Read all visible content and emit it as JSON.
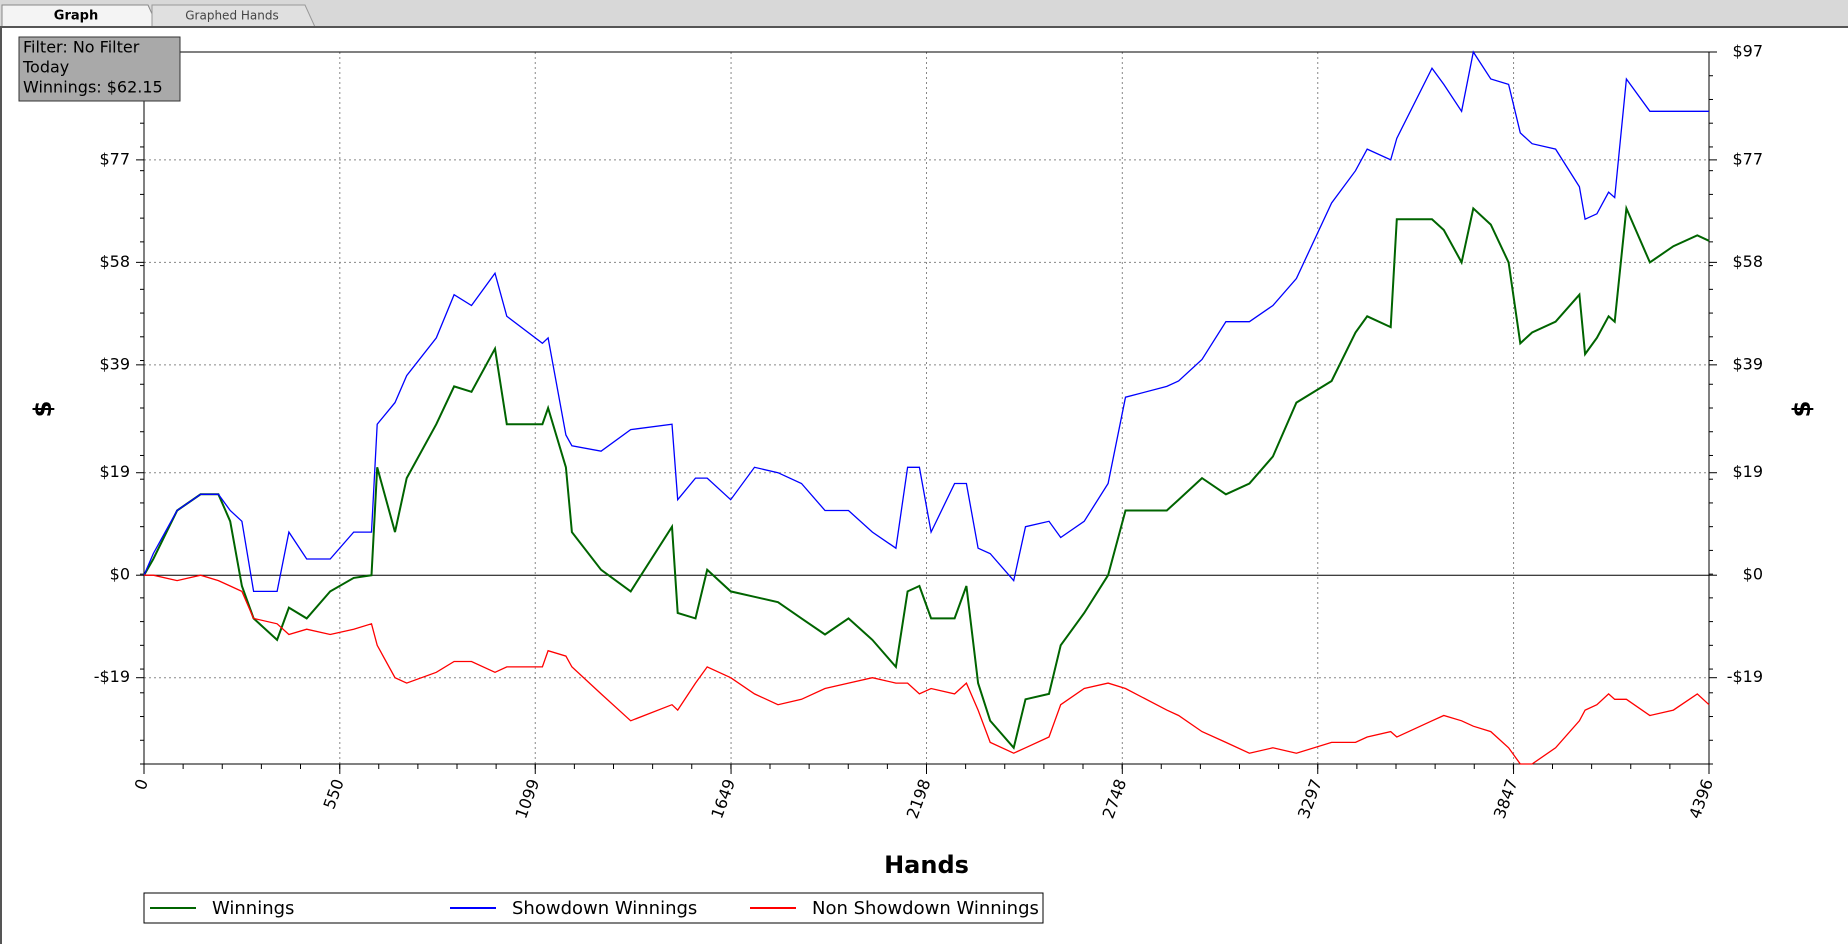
{
  "tabs": [
    "Graph",
    "Graphed Hands"
  ],
  "filter_box": [
    "Filter: No Filter",
    "Today",
    "Winnings: $62.15"
  ],
  "chart_data": {
    "type": "line",
    "xlabel": "Hands",
    "ylabel": "$",
    "x": [
      0,
      26,
      93,
      159,
      209,
      242,
      275,
      308,
      374,
      407,
      457,
      523,
      589,
      639,
      655,
      705,
      738,
      821,
      871,
      920,
      986,
      1019,
      1119,
      1135,
      1185,
      1202,
      1284,
      1367,
      1483,
      1499,
      1549,
      1582,
      1648,
      1715,
      1781,
      1847,
      1913,
      1979,
      2046,
      2112,
      2145,
      2178,
      2211,
      2277,
      2310,
      2343,
      2377,
      2443,
      2476,
      2542,
      2575,
      2641,
      2708,
      2757,
      2873,
      2906,
      2972,
      3039,
      3105,
      3171,
      3237,
      3336,
      3403,
      3436,
      3502,
      3519,
      3618,
      3651,
      3701,
      3734,
      3783,
      3833,
      3866,
      3899,
      3965,
      4032,
      4048,
      4081,
      4114,
      4131,
      4164,
      4230,
      4296,
      4363,
      4396
    ],
    "series": [
      {
        "name": "Winnings",
        "color": "#006400",
        "values": [
          0,
          3,
          12,
          15,
          15,
          10,
          -2,
          -8,
          -12,
          -6,
          -8,
          -3,
          -0.5,
          0,
          20,
          8,
          18,
          28,
          35,
          34,
          42,
          28,
          28,
          31,
          20,
          8,
          1,
          -3,
          9,
          -7,
          -8,
          1,
          -3,
          -4,
          -5,
          -8,
          -11,
          -8,
          -12,
          -17,
          -3,
          -2,
          -8,
          -8,
          -2,
          -20,
          -27,
          -32,
          -23,
          -22,
          -13,
          -7,
          0,
          12,
          12,
          14,
          18,
          15,
          17,
          22,
          32,
          36,
          45,
          48,
          46,
          66,
          66,
          64,
          58,
          68,
          65,
          58,
          43,
          45,
          47,
          52,
          41,
          44,
          48,
          47,
          68,
          58,
          61,
          63,
          62
        ]
      },
      {
        "name": "Showdown Winnings",
        "color": "#0000ff",
        "values": [
          0,
          4,
          12,
          15,
          15,
          12,
          10,
          -3,
          -3,
          8,
          3,
          3,
          8,
          8,
          28,
          32,
          37,
          44,
          52,
          50,
          56,
          48,
          43,
          44,
          26,
          24,
          23,
          27,
          28,
          14,
          18,
          18,
          14,
          20,
          19,
          17,
          12,
          12,
          8,
          5,
          20,
          20,
          8,
          17,
          17,
          5,
          4,
          -1,
          9,
          10,
          7,
          10,
          17,
          33,
          35,
          36,
          40,
          47,
          47,
          50,
          55,
          69,
          75,
          79,
          77,
          81,
          94,
          91,
          86,
          97,
          92,
          91,
          82,
          80,
          79,
          72,
          66,
          67,
          71,
          70,
          92,
          86,
          86,
          86,
          86
        ]
      },
      {
        "name": "Non Showdown Winnings",
        "color": "#ff0000",
        "values": [
          0,
          0,
          -1,
          0,
          -1,
          -2,
          -3,
          -8,
          -9,
          -11,
          -10,
          -11,
          -10,
          -9,
          -13,
          -19,
          -20,
          -18,
          -16,
          -16,
          -18,
          -17,
          -17,
          -14,
          -15,
          -17,
          -22,
          -27,
          -24,
          -25,
          -20,
          -17,
          -19,
          -22,
          -24,
          -23,
          -21,
          -20,
          -19,
          -20,
          -20,
          -22,
          -21,
          -22,
          -20,
          -25,
          -31,
          -33,
          -32,
          -30,
          -24,
          -21,
          -20,
          -21,
          -25,
          -26,
          -29,
          -31,
          -33,
          -32,
          -33,
          -31,
          -31,
          -30,
          -29,
          -30,
          -27,
          -26,
          -27,
          -28,
          -29,
          -32,
          -35,
          -35,
          -32,
          -27,
          -25,
          -24,
          -22,
          -23,
          -23,
          -26,
          -25,
          -22,
          -24
        ]
      }
    ],
    "xlim": [
      0,
      4396
    ],
    "xticks": [
      0,
      550,
      1099,
      1649,
      2198,
      2748,
      3297,
      3847,
      4396
    ],
    "ylim": [
      -35,
      97
    ],
    "yticks": [
      {
        "value": -19,
        "label": "-$19"
      },
      {
        "value": 0,
        "label": "$0"
      },
      {
        "value": 19,
        "label": "$19"
      },
      {
        "value": 39,
        "label": "$39"
      },
      {
        "value": 58,
        "label": "$58"
      },
      {
        "value": 77,
        "label": "$77"
      },
      {
        "value": 97,
        "label": "$97"
      }
    ],
    "grid": true
  }
}
